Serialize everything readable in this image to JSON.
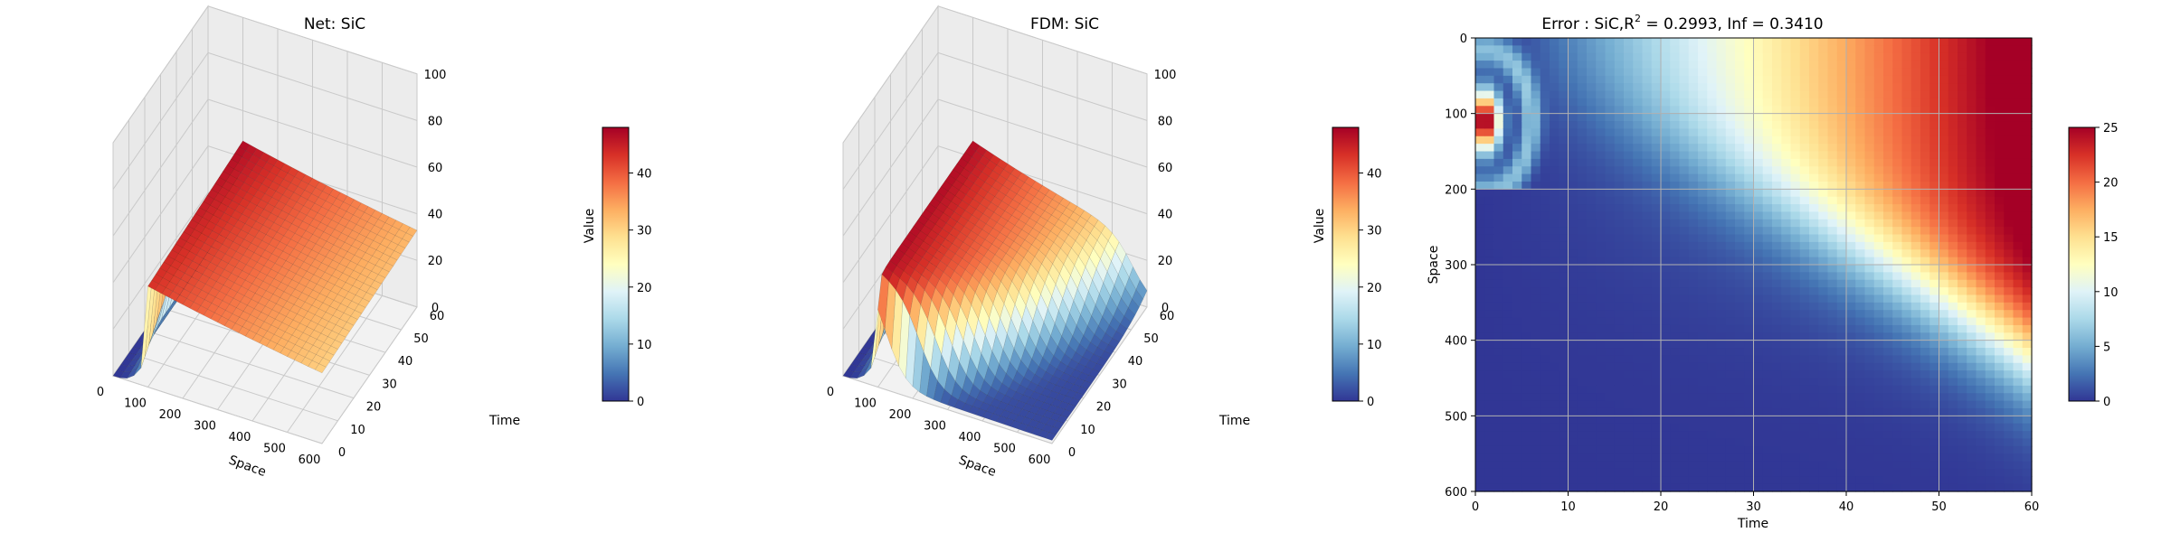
{
  "chart_data": [
    {
      "type": "surface",
      "title": "Net: SiC",
      "xlabel": "Space",
      "ylabel": "Time",
      "zlabel": "Value",
      "xlim": [
        0,
        600
      ],
      "ylim": [
        0,
        60
      ],
      "zlim": [
        0,
        100
      ],
      "xticks": [
        "0",
        "100",
        "200",
        "300",
        "400",
        "500",
        "600"
      ],
      "yticks": [
        "0",
        "10",
        "20",
        "30",
        "40",
        "50",
        "60"
      ],
      "zticks": [
        "0",
        "20",
        "40",
        "60",
        "80",
        "100"
      ],
      "colormap": "RdYlBu_r",
      "colorbar": {
        "label": "Value",
        "range": [
          0,
          48
        ],
        "ticks": [
          "0",
          "10",
          "20",
          "30",
          "40"
        ]
      },
      "surface_description": "near 0 at x=0, sharp rise to ~48 around x≈100-120, then ~45-48 plateau decreasing toward x=600"
    },
    {
      "type": "surface",
      "title": "FDM: SiC",
      "xlabel": "Space",
      "ylabel": "Time",
      "zlabel": "Value",
      "xlim": [
        0,
        600
      ],
      "ylim": [
        0,
        60
      ],
      "zlim": [
        0,
        100
      ],
      "xticks": [
        "0",
        "100",
        "200",
        "300",
        "400",
        "500",
        "600"
      ],
      "yticks": [
        "0",
        "10",
        "20",
        "30",
        "40",
        "50",
        "60"
      ],
      "zticks": [
        "0",
        "20",
        "40",
        "60",
        "80",
        "100"
      ],
      "colormap": "RdYlBu_r",
      "colorbar": {
        "label": "Value",
        "range": [
          0,
          48
        ],
        "ticks": [
          "0",
          "10",
          "20",
          "30",
          "40"
        ]
      }
    },
    {
      "type": "heatmap",
      "title": "Error : SiC,R",
      "title_sup": "2",
      "title_rest": " = 0.2993, Inf = 0.3410",
      "xlabel": "Time",
      "ylabel": "Space",
      "xlim": [
        0,
        60
      ],
      "ylim": [
        600,
        0
      ],
      "xticks": [
        "0",
        "10",
        "20",
        "30",
        "40",
        "50",
        "60"
      ],
      "yticks": [
        "0",
        "100",
        "200",
        "300",
        "400",
        "500",
        "600"
      ],
      "grid": true,
      "colormap": "RdYlBu_r",
      "colorbar": {
        "range": [
          0,
          25
        ],
        "ticks": [
          "0",
          "5",
          "10",
          "15",
          "20",
          "25"
        ]
      },
      "hotspot": {
        "time": 1,
        "space": 110,
        "value": 25
      }
    }
  ],
  "colors": {
    "cmap": [
      "#313695",
      "#4575b4",
      "#74add1",
      "#abd9e9",
      "#e0f3f8",
      "#ffffbf",
      "#fee090",
      "#fdae61",
      "#f46d43",
      "#d73027",
      "#a50026"
    ],
    "pane": "#f2f2f2",
    "grid": "#b0b0b0"
  }
}
